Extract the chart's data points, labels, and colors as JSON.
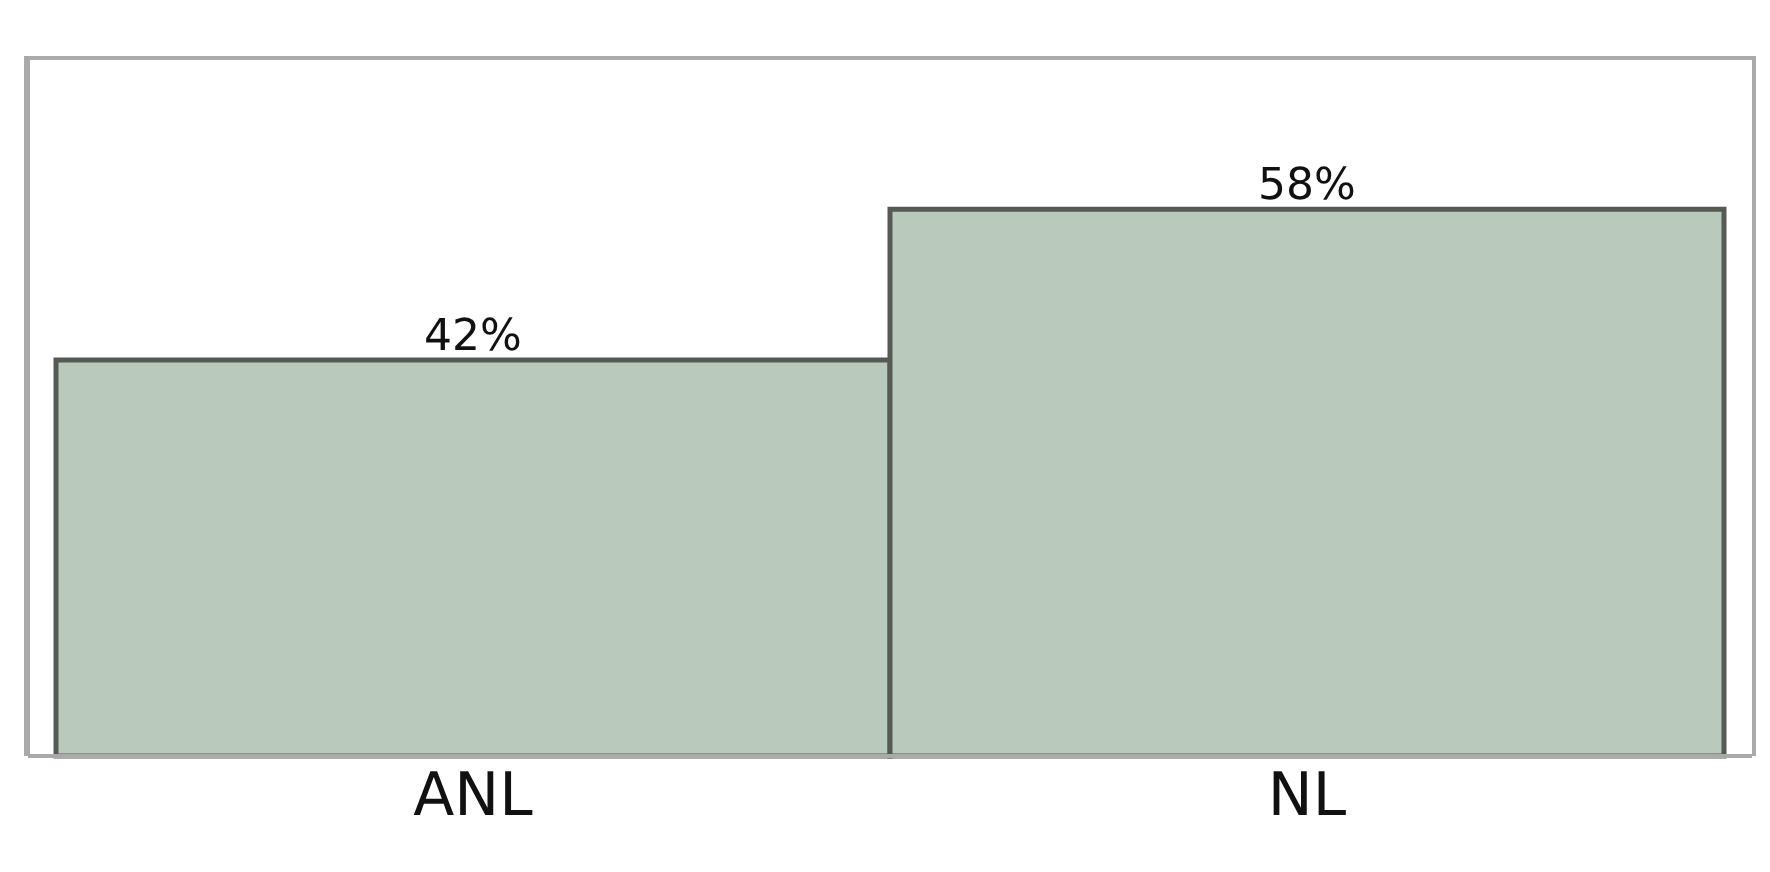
{
  "chart_data": {
    "type": "bar",
    "categories": [
      "ANL",
      "NL"
    ],
    "values": [
      42,
      58
    ],
    "value_labels": [
      "42%",
      "58%"
    ],
    "color": "#b9c9bc"
  }
}
